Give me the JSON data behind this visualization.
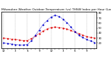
{
  "title": "Milwaukee Weather Outdoor Temperature (vs) THSW Index per Hour (Last 24 Hours)",
  "hours": [
    0,
    1,
    2,
    3,
    4,
    5,
    6,
    7,
    8,
    9,
    10,
    11,
    12,
    13,
    14,
    15,
    16,
    17,
    18,
    19,
    20,
    21,
    22,
    23
  ],
  "temp": [
    30,
    29,
    28,
    27,
    26,
    25,
    25,
    29,
    34,
    39,
    44,
    48,
    51,
    52,
    51,
    50,
    48,
    45,
    42,
    39,
    36,
    33,
    31,
    30
  ],
  "thsw": [
    20,
    19,
    18,
    17,
    16,
    16,
    17,
    24,
    35,
    46,
    57,
    65,
    72,
    76,
    73,
    68,
    61,
    52,
    43,
    36,
    31,
    27,
    24,
    21
  ],
  "temp_color": "#dd0000",
  "thsw_color": "#0000cc",
  "bg_color": "#ffffff",
  "grid_color": "#888888",
  "ylim": [
    10,
    82
  ],
  "ytick_positions": [
    20,
    30,
    40,
    50,
    60,
    70,
    80
  ],
  "ytick_labels": [
    "20",
    "30",
    "40",
    "50",
    "60",
    "70",
    "80"
  ],
  "vgrid_positions": [
    0,
    3,
    6,
    9,
    12,
    15,
    18,
    21,
    23
  ],
  "title_fontsize": 3.2,
  "tick_fontsize": 2.8
}
